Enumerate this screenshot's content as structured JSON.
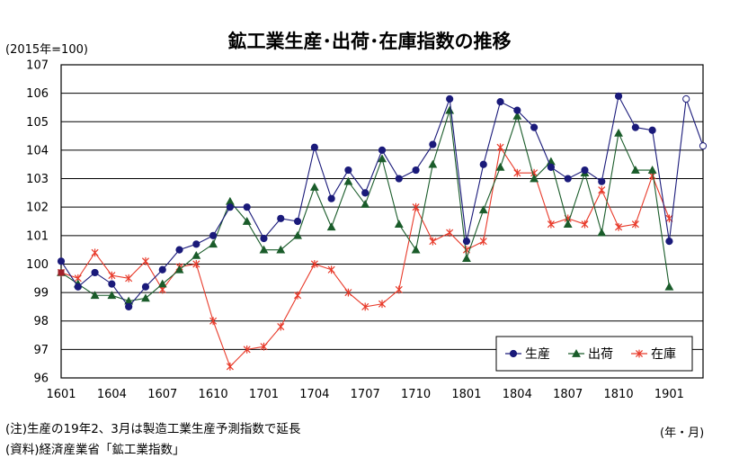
{
  "page": {
    "title": "鉱工業生産･出荷･在庫指数の推移",
    "unit": "(2015年=100)",
    "period_unit": "(年・月)",
    "note": "(注)生産の19年2、3月は製造工業生産予測指数で延長",
    "source": "(資料)経済産業省「鉱工業指数」"
  },
  "chart_data": {
    "type": "line",
    "title": "鉱工業生産･出荷･在庫指数の推移",
    "xlabel": "",
    "ylabel": "",
    "ylim": [
      96,
      107
    ],
    "yticks": [
      96,
      97,
      98,
      99,
      100,
      101,
      102,
      103,
      104,
      105,
      106,
      107
    ],
    "grid": true,
    "legend_position": "bottom-right",
    "x": [
      "1601",
      "1602",
      "1603",
      "1604",
      "1605",
      "1606",
      "1607",
      "1608",
      "1609",
      "1610",
      "1611",
      "1612",
      "1701",
      "1702",
      "1703",
      "1704",
      "1705",
      "1706",
      "1707",
      "1708",
      "1709",
      "1710",
      "1711",
      "1712",
      "1801",
      "1802",
      "1803",
      "1804",
      "1805",
      "1806",
      "1807",
      "1808",
      "1809",
      "1810",
      "1811",
      "1812",
      "1901",
      "1902",
      "1903"
    ],
    "xtick_labels": [
      "1601",
      "1604",
      "1607",
      "1610",
      "1701",
      "1704",
      "1707",
      "1710",
      "1801",
      "1804",
      "1807",
      "1810",
      "1901"
    ],
    "series": [
      {
        "name": "生産",
        "color": "#1a1a7a",
        "marker": "circle",
        "values": [
          100.1,
          99.2,
          99.7,
          99.3,
          98.5,
          99.2,
          99.8,
          100.5,
          100.7,
          101.0,
          102.0,
          102.0,
          100.9,
          101.6,
          101.5,
          104.1,
          102.3,
          103.3,
          102.5,
          104.0,
          103.0,
          103.3,
          104.2,
          105.8,
          100.8,
          103.5,
          105.7,
          105.4,
          104.8,
          103.4,
          103.0,
          103.3,
          102.9,
          105.9,
          104.8,
          104.7,
          100.8,
          null,
          null
        ],
        "forecast": [
          null,
          null,
          null,
          null,
          null,
          null,
          null,
          null,
          null,
          null,
          null,
          null,
          null,
          null,
          null,
          null,
          null,
          null,
          null,
          null,
          null,
          null,
          null,
          null,
          null,
          null,
          null,
          null,
          null,
          null,
          null,
          null,
          null,
          null,
          null,
          null,
          100.8,
          105.8,
          104.15
        ]
      },
      {
        "name": "出荷",
        "color": "#1a5c2a",
        "marker": "triangle",
        "values": [
          99.7,
          99.3,
          98.9,
          98.9,
          98.7,
          98.8,
          99.3,
          99.8,
          100.3,
          100.7,
          102.2,
          101.5,
          100.5,
          100.5,
          101.0,
          102.7,
          101.3,
          102.9,
          102.1,
          103.7,
          101.4,
          100.5,
          103.5,
          105.4,
          100.2,
          101.9,
          103.4,
          105.2,
          103.0,
          103.6,
          101.4,
          103.2,
          101.1,
          104.6,
          103.3,
          103.3,
          99.2,
          null,
          null
        ]
      },
      {
        "name": "在庫",
        "color": "#e83a2a",
        "marker": "asterisk",
        "values": [
          99.7,
          99.5,
          100.4,
          99.6,
          99.5,
          100.1,
          99.1,
          99.9,
          100.0,
          98.0,
          96.4,
          97.0,
          97.1,
          97.8,
          98.9,
          100.0,
          99.8,
          99.0,
          98.5,
          98.6,
          99.1,
          102.0,
          100.8,
          101.1,
          100.5,
          100.8,
          104.1,
          103.2,
          103.2,
          101.4,
          101.6,
          101.4,
          102.6,
          101.3,
          101.4,
          103.1,
          101.6,
          null,
          null
        ]
      }
    ]
  }
}
